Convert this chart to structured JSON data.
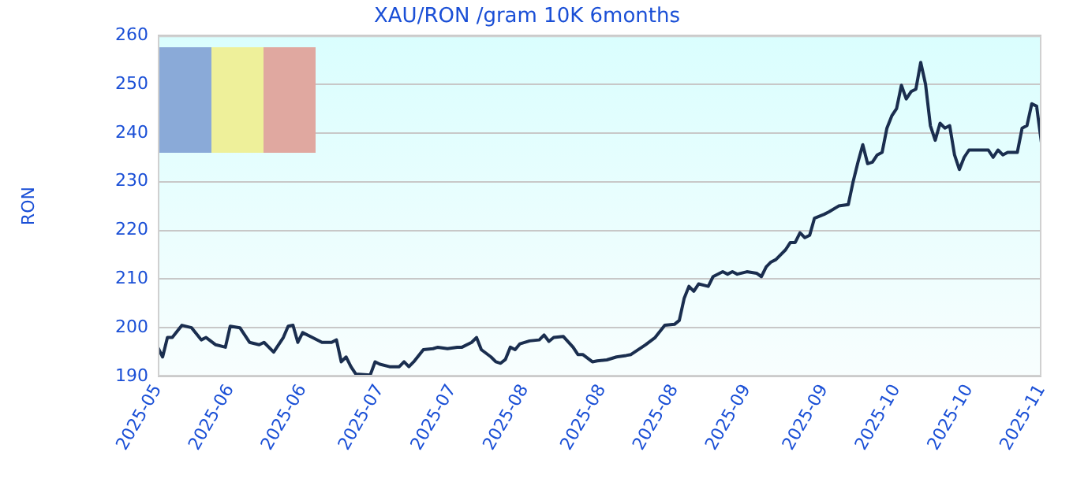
{
  "chart_data": {
    "type": "line",
    "title": "XAU/RON /gram 10K 6months",
    "ylabel": "RON",
    "x": [
      "2025-05-16",
      "2025-05-17",
      "2025-05-18",
      "2025-05-19",
      "2025-05-21",
      "2025-05-23",
      "2025-05-25",
      "2025-05-26",
      "2025-05-28",
      "2025-05-30",
      "2025-05-31",
      "2025-06-02",
      "2025-06-04",
      "2025-06-06",
      "2025-06-07",
      "2025-06-09",
      "2025-06-11",
      "2025-06-12",
      "2025-06-13",
      "2025-06-14",
      "2025-06-15",
      "2025-06-17",
      "2025-06-19",
      "2025-06-21",
      "2025-06-22",
      "2025-06-23",
      "2025-06-24",
      "2025-06-25",
      "2025-06-26",
      "2025-06-29",
      "2025-06-30",
      "2025-07-01",
      "2025-07-03",
      "2025-07-05",
      "2025-07-06",
      "2025-07-07",
      "2025-07-08",
      "2025-07-10",
      "2025-07-12",
      "2025-07-13",
      "2025-07-15",
      "2025-07-17",
      "2025-07-18",
      "2025-07-20",
      "2025-07-21",
      "2025-07-22",
      "2025-07-24",
      "2025-07-25",
      "2025-07-26",
      "2025-07-27",
      "2025-07-28",
      "2025-07-29",
      "2025-07-30",
      "2025-08-01",
      "2025-08-03",
      "2025-08-04",
      "2025-08-05",
      "2025-08-06",
      "2025-08-08",
      "2025-08-10",
      "2025-08-11",
      "2025-08-12",
      "2025-08-14",
      "2025-08-15",
      "2025-08-17",
      "2025-08-19",
      "2025-08-21",
      "2025-08-22",
      "2025-08-25",
      "2025-08-27",
      "2025-08-29",
      "2025-08-31",
      "2025-09-01",
      "2025-09-02",
      "2025-09-03",
      "2025-09-04",
      "2025-09-05",
      "2025-09-07",
      "2025-09-08",
      "2025-09-10",
      "2025-09-11",
      "2025-09-12",
      "2025-09-13",
      "2025-09-15",
      "2025-09-17",
      "2025-09-18",
      "2025-09-19",
      "2025-09-20",
      "2025-09-21",
      "2025-09-23",
      "2025-09-24",
      "2025-09-25",
      "2025-09-26",
      "2025-09-27",
      "2025-09-28",
      "2025-09-29",
      "2025-10-01",
      "2025-10-02",
      "2025-10-04",
      "2025-10-06",
      "2025-10-07",
      "2025-10-08",
      "2025-10-09",
      "2025-10-10",
      "2025-10-11",
      "2025-10-12",
      "2025-10-13",
      "2025-10-14",
      "2025-10-15",
      "2025-10-16",
      "2025-10-17",
      "2025-10-18",
      "2025-10-19",
      "2025-10-20",
      "2025-10-21",
      "2025-10-22",
      "2025-10-23",
      "2025-10-24",
      "2025-10-25",
      "2025-10-26",
      "2025-10-27",
      "2025-10-28",
      "2025-10-29",
      "2025-10-30",
      "2025-10-31",
      "2025-11-02",
      "2025-11-04",
      "2025-11-05",
      "2025-11-06",
      "2025-11-07",
      "2025-11-08",
      "2025-11-10",
      "2025-11-11",
      "2025-11-12",
      "2025-11-13",
      "2025-11-14",
      "2025-11-15"
    ],
    "series": [
      {
        "color": "#1a2e4f",
        "values": [
          196,
          194,
          198,
          198,
          200.5,
          200,
          197.5,
          198,
          196.5,
          196,
          200.3,
          200,
          197,
          196.5,
          197,
          195,
          198,
          200.3,
          200.5,
          197,
          199,
          198,
          197,
          197,
          197.5,
          193,
          194,
          192,
          190.5,
          190.3,
          193,
          192.5,
          192,
          192,
          193,
          192,
          193,
          195.5,
          195.7,
          196,
          195.7,
          196,
          196,
          197,
          198,
          195.5,
          194,
          193,
          192.7,
          193.5,
          196,
          195.5,
          196.7,
          197.3,
          197.5,
          198.5,
          197.2,
          198,
          198.2,
          196,
          194.5,
          194.5,
          193,
          193.2,
          193.4,
          194,
          194.3,
          194.5,
          196.5,
          198,
          200.5,
          200.7,
          201.5,
          206,
          208.5,
          207.5,
          209,
          208.5,
          210.5,
          211.5,
          211,
          211.5,
          211,
          211.5,
          211.2,
          210.5,
          212.5,
          213.5,
          214,
          216,
          217.5,
          217.5,
          219.5,
          218.5,
          219,
          222.5,
          223.3,
          223.8,
          225,
          225.3,
          230,
          234,
          237.6,
          233.7,
          234,
          235.5,
          236,
          241,
          243.5,
          245,
          249.8,
          247,
          248.5,
          249,
          254.5,
          250,
          241.5,
          238.5,
          242,
          241,
          241.5,
          235.5,
          232.5,
          235,
          236.5,
          236.5,
          236.5,
          235,
          236.5,
          235.5,
          236,
          236,
          241,
          241.5,
          246,
          245.5,
          238
        ]
      }
    ],
    "xlim": [
      "2025-05-16",
      "2025-11-15"
    ],
    "xticks": [
      {
        "value": "2025-05-16",
        "label": "2025-05"
      },
      {
        "value": "2025-05-31",
        "label": "2025-06"
      },
      {
        "value": "2025-06-15",
        "label": "2025-06"
      },
      {
        "value": "2025-07-01",
        "label": "2025-07"
      },
      {
        "value": "2025-07-16",
        "label": "2025-07"
      },
      {
        "value": "2025-07-31",
        "label": "2025-08"
      },
      {
        "value": "2025-08-16",
        "label": "2025-08"
      },
      {
        "value": "2025-08-31",
        "label": "2025-08"
      },
      {
        "value": "2025-09-15",
        "label": "2025-09"
      },
      {
        "value": "2025-10-01",
        "label": "2025-09"
      },
      {
        "value": "2025-10-16",
        "label": "2025-10"
      },
      {
        "value": "2025-10-31",
        "label": "2025-10"
      },
      {
        "value": "2025-11-15",
        "label": "2025-11"
      }
    ],
    "ylim": [
      190,
      260
    ],
    "yticks": [
      190,
      200,
      210,
      220,
      230,
      240,
      250,
      260
    ],
    "grid": "y",
    "marker": "none",
    "line_style": "solid"
  }
}
